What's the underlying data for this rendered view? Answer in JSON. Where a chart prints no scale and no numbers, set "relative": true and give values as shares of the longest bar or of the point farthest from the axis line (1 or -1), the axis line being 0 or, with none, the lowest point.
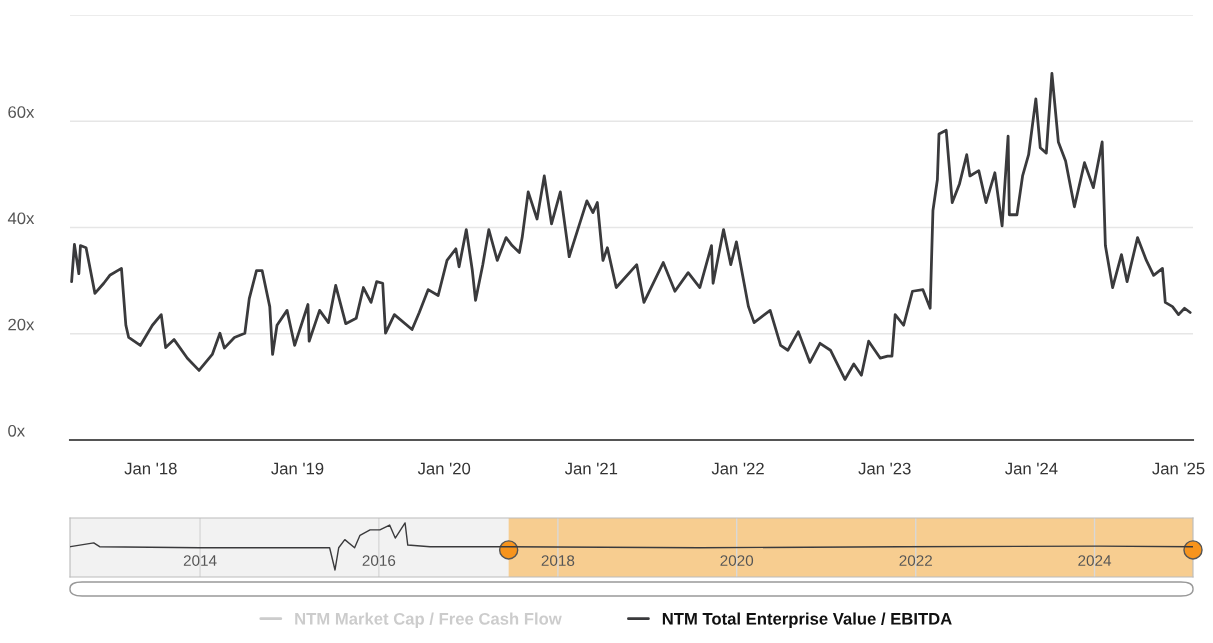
{
  "chart_data": [
    {
      "type": "line",
      "xlim": [
        "2017-06-14",
        "2025-02-06"
      ],
      "xticks": [
        {
          "value": "2018-01-01",
          "label": "Jan '18"
        },
        {
          "value": "2019-01-01",
          "label": "Jan '19"
        },
        {
          "value": "2020-01-01",
          "label": "Jan '20"
        },
        {
          "value": "2021-01-01",
          "label": "Jan '21"
        },
        {
          "value": "2022-01-01",
          "label": "Jan '22"
        },
        {
          "value": "2023-01-01",
          "label": "Jan '23"
        },
        {
          "value": "2024-01-01",
          "label": "Jan '24"
        },
        {
          "value": "2025-01-01",
          "label": "Jan '25"
        }
      ],
      "ylim": [
        0,
        80
      ],
      "yticks": [
        {
          "value": 0,
          "label": "0x"
        },
        {
          "value": 20,
          "label": "20x"
        },
        {
          "value": 40,
          "label": "40x"
        },
        {
          "value": 60,
          "label": "60x"
        },
        {
          "value": 80,
          "label": null
        }
      ],
      "grid": "y",
      "legend": "bottom",
      "series": [
        {
          "name": "NTM Market Cap / Free Cash Flow",
          "color": "#cccccc"
        },
        {
          "name": "NTM Total Enterprise Value / EBITDA",
          "color": "#3a3a3c",
          "x": [
            "2017-06-18",
            "2017-06-25",
            "2017-07-06",
            "2017-07-10",
            "2017-07-24",
            "2017-08-15",
            "2017-09-06",
            "2017-09-21",
            "2017-10-20",
            "2017-10-31",
            "2017-11-07",
            "2017-12-06",
            "2018-01-05",
            "2018-01-27",
            "2018-02-07",
            "2018-02-28",
            "2018-04-02",
            "2018-05-01",
            "2018-06-03",
            "2018-06-22",
            "2018-07-03",
            "2018-07-28",
            "2018-08-23",
            "2018-09-03",
            "2018-09-21",
            "2018-10-05",
            "2018-10-24",
            "2018-10-31",
            "2018-11-11",
            "2018-12-06",
            "2018-12-25",
            "2019-01-27",
            "2019-01-30",
            "2019-02-25",
            "2019-03-19",
            "2019-04-06",
            "2019-05-01",
            "2019-05-27",
            "2019-06-14",
            "2019-07-03",
            "2019-07-17",
            "2019-08-01",
            "2019-08-08",
            "2019-08-30",
            "2019-10-13",
            "2019-10-31",
            "2019-11-22",
            "2019-12-17",
            "2020-01-08",
            "2020-01-30",
            "2020-02-07",
            "2020-02-25",
            "2020-03-11",
            "2020-03-19",
            "2020-04-06",
            "2020-04-21",
            "2020-05-12",
            "2020-06-03",
            "2020-06-18",
            "2020-07-06",
            "2020-07-13",
            "2020-07-28",
            "2020-08-19",
            "2020-09-06",
            "2020-09-24",
            "2020-10-16",
            "2020-11-07",
            "2020-11-22",
            "2020-12-21",
            "2021-01-05",
            "2021-01-16",
            "2021-01-30",
            "2021-02-10",
            "2021-03-04",
            "2021-04-24",
            "2021-05-12",
            "2021-06-29",
            "2021-07-28",
            "2021-08-30",
            "2021-09-28",
            "2021-10-27",
            "2021-10-31",
            "2021-11-26",
            "2021-12-14",
            "2021-12-28",
            "2022-01-27",
            "2022-02-10",
            "2022-03-22",
            "2022-04-17",
            "2022-05-05",
            "2022-05-31",
            "2022-06-29",
            "2022-07-24",
            "2022-08-19",
            "2022-09-24",
            "2022-10-16",
            "2022-11-04",
            "2022-11-22",
            "2022-12-21",
            "2023-01-08",
            "2023-01-19",
            "2023-01-27",
            "2023-02-17",
            "2023-03-11",
            "2023-04-06",
            "2023-04-24",
            "2023-05-01",
            "2023-05-12",
            "2023-05-16",
            "2023-06-03",
            "2023-06-18",
            "2023-07-06",
            "2023-07-24",
            "2023-08-01",
            "2023-08-23",
            "2023-09-10",
            "2023-10-02",
            "2023-10-20",
            "2023-11-04",
            "2023-11-07",
            "2023-11-26",
            "2023-12-10",
            "2023-12-25",
            "2024-01-12",
            "2024-01-23",
            "2024-02-07",
            "2024-02-21",
            "2024-03-08",
            "2024-03-26",
            "2024-04-17",
            "2024-05-12",
            "2024-06-03",
            "2024-06-25",
            "2024-07-03",
            "2024-07-21",
            "2024-08-12",
            "2024-08-26",
            "2024-09-21",
            "2024-10-13",
            "2024-10-31",
            "2024-11-22",
            "2024-11-29",
            "2024-12-17",
            "2025-01-01",
            "2025-01-16",
            "2025-01-30"
          ],
          "values": [
            29.8,
            36.8,
            31.3,
            36.6,
            36.2,
            27.6,
            29.5,
            31,
            32.3,
            21.6,
            19.3,
            17.8,
            21.6,
            23.6,
            17.4,
            18.9,
            15.4,
            13.1,
            16.1,
            20.1,
            17.3,
            19.3,
            20.1,
            26.6,
            31.9,
            31.9,
            25.1,
            16.1,
            21.6,
            24.4,
            17.8,
            25.5,
            18.6,
            24.4,
            22.1,
            29.1,
            21.9,
            22.9,
            28.7,
            25.9,
            29.8,
            29.5,
            20.1,
            23.6,
            20.8,
            24,
            28.3,
            27.2,
            33.8,
            36,
            32.6,
            39.6,
            31.9,
            26.3,
            33,
            39.6,
            33.8,
            38.1,
            36.6,
            35.3,
            38.1,
            46.7,
            41.6,
            49.7,
            40.7,
            46.7,
            34.5,
            38.1,
            45,
            42.8,
            44.7,
            33.8,
            36.2,
            28.7,
            33,
            25.9,
            33.4,
            28,
            31.5,
            28.7,
            36.6,
            29.5,
            39.6,
            33,
            37.3,
            25.1,
            22.1,
            24.4,
            17.8,
            16.9,
            20.4,
            14.6,
            18.2,
            16.9,
            11.4,
            14.3,
            12.2,
            18.6,
            15.4,
            15.8,
            15.8,
            23.6,
            21.6,
            28,
            28.3,
            24.8,
            43.2,
            49,
            57.6,
            58.3,
            44.7,
            48.2,
            53.7,
            49.7,
            50.7,
            44.7,
            50.3,
            40.3,
            57.2,
            42.4,
            42.4,
            49.7,
            53.7,
            64.2,
            55,
            54,
            69,
            56.1,
            52.5,
            43.9,
            52.2,
            47.5,
            56.1,
            36.6,
            28.7,
            34.9,
            29.8,
            38.1,
            33.8,
            31,
            32.3,
            25.9,
            25.1,
            23.6,
            24.8,
            24
          ]
        }
      ]
    },
    {
      "type": "line",
      "relative": true,
      "xlim": [
        "2012-07-19",
        "2025-02-06"
      ],
      "xticks": [
        {
          "value": "2014-01-01",
          "label": "2014"
        },
        {
          "value": "2016-01-01",
          "label": "2016"
        },
        {
          "value": "2018-01-01",
          "label": "2018"
        },
        {
          "value": "2020-01-01",
          "label": "2020"
        },
        {
          "value": "2022-01-01",
          "label": "2022"
        },
        {
          "value": "2024-01-01",
          "label": "2024"
        }
      ],
      "tick_labels": "x",
      "grid": "x",
      "bands": [
        {
          "axis": "x",
          "from": "2017-06-14",
          "to": "2025-02-06",
          "color": "#f8c77f"
        }
      ],
      "series": [
        {
          "color": "#3a3a3c",
          "x": [
            "2012-07-21",
            "2012-10-24",
            "2012-11-17",
            "2014-01-01",
            "2015-06-14",
            "2015-07-06",
            "2015-07-21",
            "2015-08-15",
            "2015-09-24",
            "2015-10-16",
            "2015-11-26",
            "2016-01-05",
            "2016-02-14",
            "2016-03-08",
            "2016-04-17",
            "2016-04-28",
            "2016-07-28",
            "2017-06-11",
            "2019-08-01",
            "2021-10-27",
            "2024-01-19",
            "2025-02-06"
          ],
          "values": [
            0.56,
            0.63,
            0.56,
            0.54,
            0.54,
            0.13,
            0.54,
            0.69,
            0.54,
            0.77,
            0.87,
            0.87,
            0.96,
            0.72,
            1,
            0.59,
            0.56,
            0.56,
            0.54,
            0.56,
            0.57,
            0.56
          ]
        }
      ]
    }
  ]
}
